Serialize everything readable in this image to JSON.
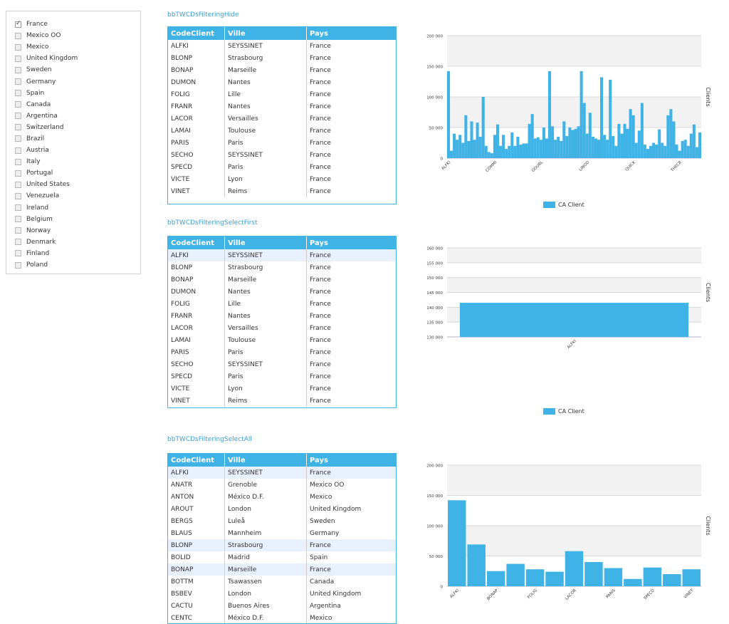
{
  "filter": {
    "items": [
      {
        "label": "France",
        "checked": true
      },
      {
        "label": "Mexico OO",
        "checked": false
      },
      {
        "label": "Mexico",
        "checked": false
      },
      {
        "label": "United Kingdom",
        "checked": false
      },
      {
        "label": "Sweden",
        "checked": false
      },
      {
        "label": "Germany",
        "checked": false
      },
      {
        "label": "Spain",
        "checked": false
      },
      {
        "label": "Canada",
        "checked": false
      },
      {
        "label": "Argentina",
        "checked": false
      },
      {
        "label": "Switzerland",
        "checked": false
      },
      {
        "label": "Brazil",
        "checked": false
      },
      {
        "label": "Austria",
        "checked": false
      },
      {
        "label": "Italy",
        "checked": false
      },
      {
        "label": "Portugal",
        "checked": false
      },
      {
        "label": "United States",
        "checked": false
      },
      {
        "label": "Venezuela",
        "checked": false
      },
      {
        "label": "Ireland",
        "checked": false
      },
      {
        "label": "Belgium",
        "checked": false
      },
      {
        "label": "Norway",
        "checked": false
      },
      {
        "label": "Denmark",
        "checked": false
      },
      {
        "label": "Finland",
        "checked": false
      },
      {
        "label": "Poland",
        "checked": false
      }
    ]
  },
  "sections": [
    {
      "title": "bbTWCDsFilteringHide",
      "grid": {
        "columns": [
          "CodeClient",
          "Ville",
          "Pays"
        ],
        "selected_row": -1,
        "rows": [
          [
            "ALFKI",
            "SEYSSINET",
            "France"
          ],
          [
            "BLONP",
            "Strasbourg",
            "France"
          ],
          [
            "BONAP",
            "Marseille",
            "France"
          ],
          [
            "DUMON",
            "Nantes",
            "France"
          ],
          [
            "FOLIG",
            "Lille",
            "France"
          ],
          [
            "FRANR",
            "Nantes",
            "France"
          ],
          [
            "LACOR",
            "Versailles",
            "France"
          ],
          [
            "LAMAI",
            "Toulouse",
            "France"
          ],
          [
            "PARIS",
            "Paris",
            "France"
          ],
          [
            "SECHO",
            "SEYSSINET",
            "France"
          ],
          [
            "SPECD",
            "Paris",
            "France"
          ],
          [
            "VICTE",
            "Lyon",
            "France"
          ],
          [
            "VINET",
            "Reims",
            "France"
          ]
        ]
      }
    },
    {
      "title": "bbTWCDsFilteringSelectFirst",
      "grid": {
        "columns": [
          "CodeClient",
          "Ville",
          "Pays"
        ],
        "selected_row": 0,
        "rows": [
          [
            "ALFKI",
            "SEYSSINET",
            "France"
          ],
          [
            "BLONP",
            "Strasbourg",
            "France"
          ],
          [
            "BONAP",
            "Marseille",
            "France"
          ],
          [
            "DUMON",
            "Nantes",
            "France"
          ],
          [
            "FOLIG",
            "Lille",
            "France"
          ],
          [
            "FRANR",
            "Nantes",
            "France"
          ],
          [
            "LACOR",
            "Versailles",
            "France"
          ],
          [
            "LAMAI",
            "Toulouse",
            "France"
          ],
          [
            "PARIS",
            "Paris",
            "France"
          ],
          [
            "SECHO",
            "SEYSSINET",
            "France"
          ],
          [
            "SPECD",
            "Paris",
            "France"
          ],
          [
            "VICTE",
            "Lyon",
            "France"
          ],
          [
            "VINET",
            "Reims",
            "France"
          ]
        ]
      }
    },
    {
      "title": "bbTWCDsFilteringSelectAll",
      "grid": {
        "columns": [
          "CodeClient",
          "Ville",
          "Pays"
        ],
        "selected_rows": [
          0,
          6,
          8
        ],
        "rows": [
          [
            "ALFKI",
            "SEYSSINET",
            "France"
          ],
          [
            "ANATR",
            "Grenoble",
            "Mexico OO"
          ],
          [
            "ANTON",
            "México D.F.",
            "Mexico"
          ],
          [
            "AROUT",
            "London",
            "United Kingdom"
          ],
          [
            "BERGS",
            "Luleå",
            "Sweden"
          ],
          [
            "BLAUS",
            "Mannheim",
            "Germany"
          ],
          [
            "BLONP",
            "Strasbourg",
            "France"
          ],
          [
            "BOLID",
            "Madrid",
            "Spain"
          ],
          [
            "BONAP",
            "Marseille",
            "France"
          ],
          [
            "BOTTM",
            "Tsawassen",
            "Canada"
          ],
          [
            "BSBEV",
            "London",
            "United Kingdom"
          ],
          [
            "CACTU",
            "Buenos Aires",
            "Argentina"
          ],
          [
            "CENTC",
            "México D.F.",
            "Mexico"
          ]
        ]
      }
    }
  ],
  "chart_data": [
    {
      "type": "bar",
      "ylabel": "Clients",
      "ylim": [
        0,
        200000
      ],
      "yticks": [
        0,
        50000,
        100000,
        150000,
        200000
      ],
      "ytick_labels": [
        "0",
        "50 000",
        "100 000",
        "150 000",
        "200 000"
      ],
      "xtick_labels": [
        "ALFKI",
        "COMMI",
        "GOURL",
        "LINOD",
        "QUICK",
        "THECR"
      ],
      "xtick_indices": [
        0,
        16,
        32,
        48,
        64,
        80
      ],
      "legend": [
        "CA Client"
      ],
      "legend_position": "bottom",
      "series": [
        {
          "name": "CA Client",
          "values": [
            142000,
            12000,
            40000,
            30000,
            38000,
            25000,
            70000,
            28000,
            60000,
            30000,
            58000,
            35000,
            100000,
            20000,
            10000,
            8000,
            38000,
            55000,
            20000,
            38000,
            15000,
            20000,
            42000,
            20000,
            35000,
            22000,
            24000,
            24000,
            56000,
            72000,
            32000,
            34000,
            30000,
            50000,
            32000,
            142000,
            52000,
            30000,
            35000,
            28000,
            60000,
            36000,
            50000,
            46000,
            48000,
            52000,
            142000,
            90000,
            40000,
            74000,
            35000,
            32000,
            30000,
            132000,
            38000,
            30000,
            128000,
            36000,
            20000,
            56000,
            40000,
            56000,
            48000,
            80000,
            70000,
            25000,
            45000,
            90000,
            22000,
            15000,
            20000,
            25000,
            22000,
            47000,
            25000,
            20000,
            70000,
            80000,
            60000,
            22000,
            12000,
            28000,
            30000,
            20000,
            40000,
            55000,
            18000,
            42000
          ]
        }
      ]
    },
    {
      "type": "bar",
      "ylabel": "Clients",
      "ylim": [
        130000,
        160000
      ],
      "yticks": [
        130000,
        135000,
        140000,
        145000,
        150000,
        155000,
        160000
      ],
      "ytick_labels": [
        "130 000",
        "135 000",
        "140 000",
        "145 000",
        "150 000",
        "155 000",
        "160 000"
      ],
      "xtick_labels": [
        "ALFKI"
      ],
      "xtick_indices": [
        0
      ],
      "legend": [
        "CA Client"
      ],
      "legend_position": "bottom",
      "series": [
        {
          "name": "CA Client",
          "values": [
            141500
          ]
        }
      ]
    },
    {
      "type": "bar",
      "ylabel": "Clients",
      "ylim": [
        0,
        200000
      ],
      "yticks": [
        0,
        50000,
        100000,
        150000,
        200000
      ],
      "ytick_labels": [
        "0",
        "50 000",
        "100 000",
        "150 000",
        "200 000"
      ],
      "xtick_labels": [
        "ALFKI",
        "BONAP",
        "FOLIG",
        "LACOR",
        "PARIS",
        "SPECD",
        "VINET"
      ],
      "xtick_indices": [
        0,
        2,
        4,
        6,
        8,
        10,
        12
      ],
      "legend": [],
      "series": [
        {
          "name": "CA Client",
          "values": [
            142000,
            69000,
            25000,
            37000,
            28000,
            24000,
            58000,
            40000,
            30000,
            12000,
            31000,
            20000,
            28000
          ]
        }
      ]
    }
  ],
  "colors": {
    "accent": "#3fb2e6",
    "link": "#3a9ed8",
    "selected_row": "#e8f0fb",
    "band": "#f2f2f2"
  }
}
